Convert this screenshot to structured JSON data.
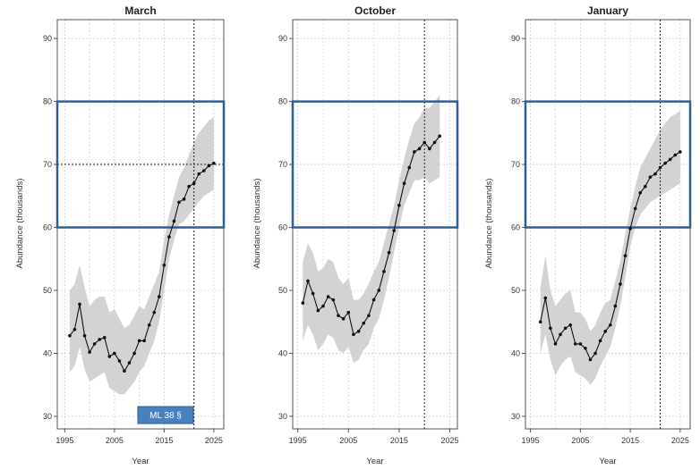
{
  "colors": {
    "band": "#d3d3d3",
    "line": "#111111",
    "box": "#2f5f96",
    "grid": "#cfcfcf",
    "badge_fill": "#4a7fc0",
    "badge_border": "#2f5f96"
  },
  "chart_data": [
    {
      "type": "line",
      "title": "March",
      "xlabel": "Year",
      "ylabel": "Abundance (thousands)",
      "xlim": [
        1993.5,
        2027
      ],
      "ylim": [
        28,
        93
      ],
      "xticks": [
        1995,
        2005,
        2015,
        2025
      ],
      "yticks": [
        30,
        40,
        50,
        60,
        70,
        80,
        90
      ],
      "grid": true,
      "vline": 2021,
      "hline": 70,
      "box": [
        60,
        80
      ],
      "badge": "ML 38 §",
      "x": [
        1996,
        1997,
        1998,
        1999,
        2000,
        2001,
        2002,
        2003,
        2004,
        2005,
        2006,
        2007,
        2008,
        2009,
        2010,
        2011,
        2012,
        2013,
        2014,
        2015,
        2016,
        2017,
        2018,
        2019,
        2020,
        2021,
        2022,
        2023,
        2024,
        2025
      ],
      "y": [
        42.8,
        43.8,
        47.8,
        42.8,
        40.2,
        41.5,
        42.2,
        42.5,
        39.5,
        40.0,
        38.8,
        37.2,
        38.5,
        40.0,
        42.0,
        42.0,
        44.5,
        46.5,
        49.0,
        54.0,
        58.5,
        61.0,
        64.0,
        64.5,
        66.5,
        67.0,
        68.5,
        69.0,
        69.8,
        70.2
      ],
      "band_lower": [
        37.0,
        38.0,
        41.0,
        37.5,
        35.5,
        36.0,
        36.5,
        37.0,
        34.5,
        34.0,
        33.5,
        33.5,
        34.5,
        35.5,
        37.0,
        38.0,
        40.0,
        42.0,
        45.0,
        50.0,
        55.0,
        58.0,
        60.5,
        61.0,
        62.0,
        63.0,
        64.0,
        65.0,
        65.5,
        66.0
      ],
      "band_upper": [
        50.0,
        51.0,
        54.0,
        50.5,
        47.5,
        48.5,
        49.0,
        49.0,
        46.5,
        47.0,
        45.5,
        44.0,
        44.5,
        46.0,
        47.5,
        47.0,
        49.0,
        51.0,
        53.0,
        58.0,
        62.0,
        65.0,
        68.0,
        69.5,
        71.5,
        73.5,
        75.0,
        76.0,
        77.0,
        77.5
      ]
    },
    {
      "type": "line",
      "title": "October",
      "xlabel": "Year",
      "ylabel": "Abundance (thousands)",
      "xlim": [
        1994,
        2026.5
      ],
      "ylim": [
        28,
        93
      ],
      "xticks": [
        1995,
        2005,
        2015,
        2025
      ],
      "yticks": [
        30,
        40,
        50,
        60,
        70,
        80,
        90
      ],
      "grid": true,
      "vline": 2020,
      "box": [
        60,
        80
      ],
      "x": [
        1996,
        1997,
        1998,
        1999,
        2000,
        2001,
        2002,
        2003,
        2004,
        2005,
        2006,
        2007,
        2008,
        2009,
        2010,
        2011,
        2012,
        2013,
        2014,
        2015,
        2016,
        2017,
        2018,
        2019,
        2020,
        2021,
        2022,
        2023
      ],
      "y": [
        48.0,
        51.5,
        49.5,
        46.8,
        47.5,
        49.0,
        48.5,
        46.0,
        45.5,
        46.5,
        43.0,
        43.5,
        44.8,
        46.0,
        48.5,
        50.0,
        53.0,
        56.0,
        59.5,
        63.5,
        67.0,
        69.5,
        72.0,
        72.5,
        73.5,
        72.5,
        73.5,
        74.5
      ],
      "band_lower": [
        42.0,
        44.5,
        43.0,
        40.5,
        41.5,
        43.0,
        42.5,
        40.5,
        40.0,
        41.0,
        38.5,
        39.0,
        40.5,
        41.5,
        44.0,
        45.5,
        48.5,
        52.0,
        56.0,
        60.0,
        63.5,
        65.5,
        67.5,
        67.5,
        68.0,
        67.0,
        67.5,
        68.0
      ],
      "band_upper": [
        54.5,
        57.5,
        56.0,
        53.0,
        53.5,
        55.0,
        54.5,
        52.0,
        51.0,
        52.0,
        48.5,
        48.5,
        49.5,
        51.0,
        53.0,
        54.5,
        57.5,
        60.5,
        63.5,
        67.5,
        71.0,
        74.0,
        76.5,
        77.5,
        79.0,
        79.0,
        80.0,
        81.0
      ]
    },
    {
      "type": "line",
      "title": "January",
      "xlabel": "Year",
      "ylabel": "Abundance (thousands)",
      "xlim": [
        1994,
        2027
      ],
      "ylim": [
        28,
        93
      ],
      "xticks": [
        1995,
        2005,
        2015,
        2025
      ],
      "yticks": [
        30,
        40,
        50,
        60,
        70,
        80,
        90
      ],
      "grid": true,
      "vline": 2021,
      "box": [
        60,
        80
      ],
      "x": [
        1997,
        1998,
        1999,
        2000,
        2001,
        2002,
        2003,
        2004,
        2005,
        2006,
        2007,
        2008,
        2009,
        2010,
        2011,
        2012,
        2013,
        2014,
        2015,
        2016,
        2017,
        2018,
        2019,
        2020,
        2021,
        2022,
        2023,
        2024,
        2025
      ],
      "y": [
        45.0,
        48.8,
        44.0,
        41.5,
        43.0,
        44.0,
        44.5,
        41.5,
        41.5,
        40.8,
        39.0,
        40.0,
        42.0,
        43.5,
        44.5,
        47.5,
        51.0,
        55.5,
        59.8,
        63.0,
        65.5,
        66.5,
        68.0,
        68.5,
        69.5,
        70.2,
        70.8,
        71.5,
        72.0
      ],
      "band_lower": [
        40.0,
        43.0,
        39.0,
        36.5,
        38.0,
        39.0,
        39.5,
        37.0,
        36.5,
        36.0,
        35.0,
        36.0,
        38.0,
        39.5,
        41.0,
        44.0,
        47.5,
        52.0,
        57.0,
        60.0,
        62.0,
        63.0,
        64.0,
        64.5,
        65.0,
        65.5,
        66.0,
        66.5,
        67.0
      ],
      "band_upper": [
        50.5,
        55.5,
        50.0,
        47.5,
        48.5,
        49.5,
        50.0,
        46.5,
        46.5,
        45.5,
        43.5,
        44.5,
        46.5,
        48.0,
        48.5,
        51.5,
        54.5,
        59.0,
        63.0,
        66.5,
        69.5,
        71.0,
        72.5,
        74.0,
        75.5,
        76.5,
        77.5,
        78.0,
        78.5
      ]
    }
  ]
}
